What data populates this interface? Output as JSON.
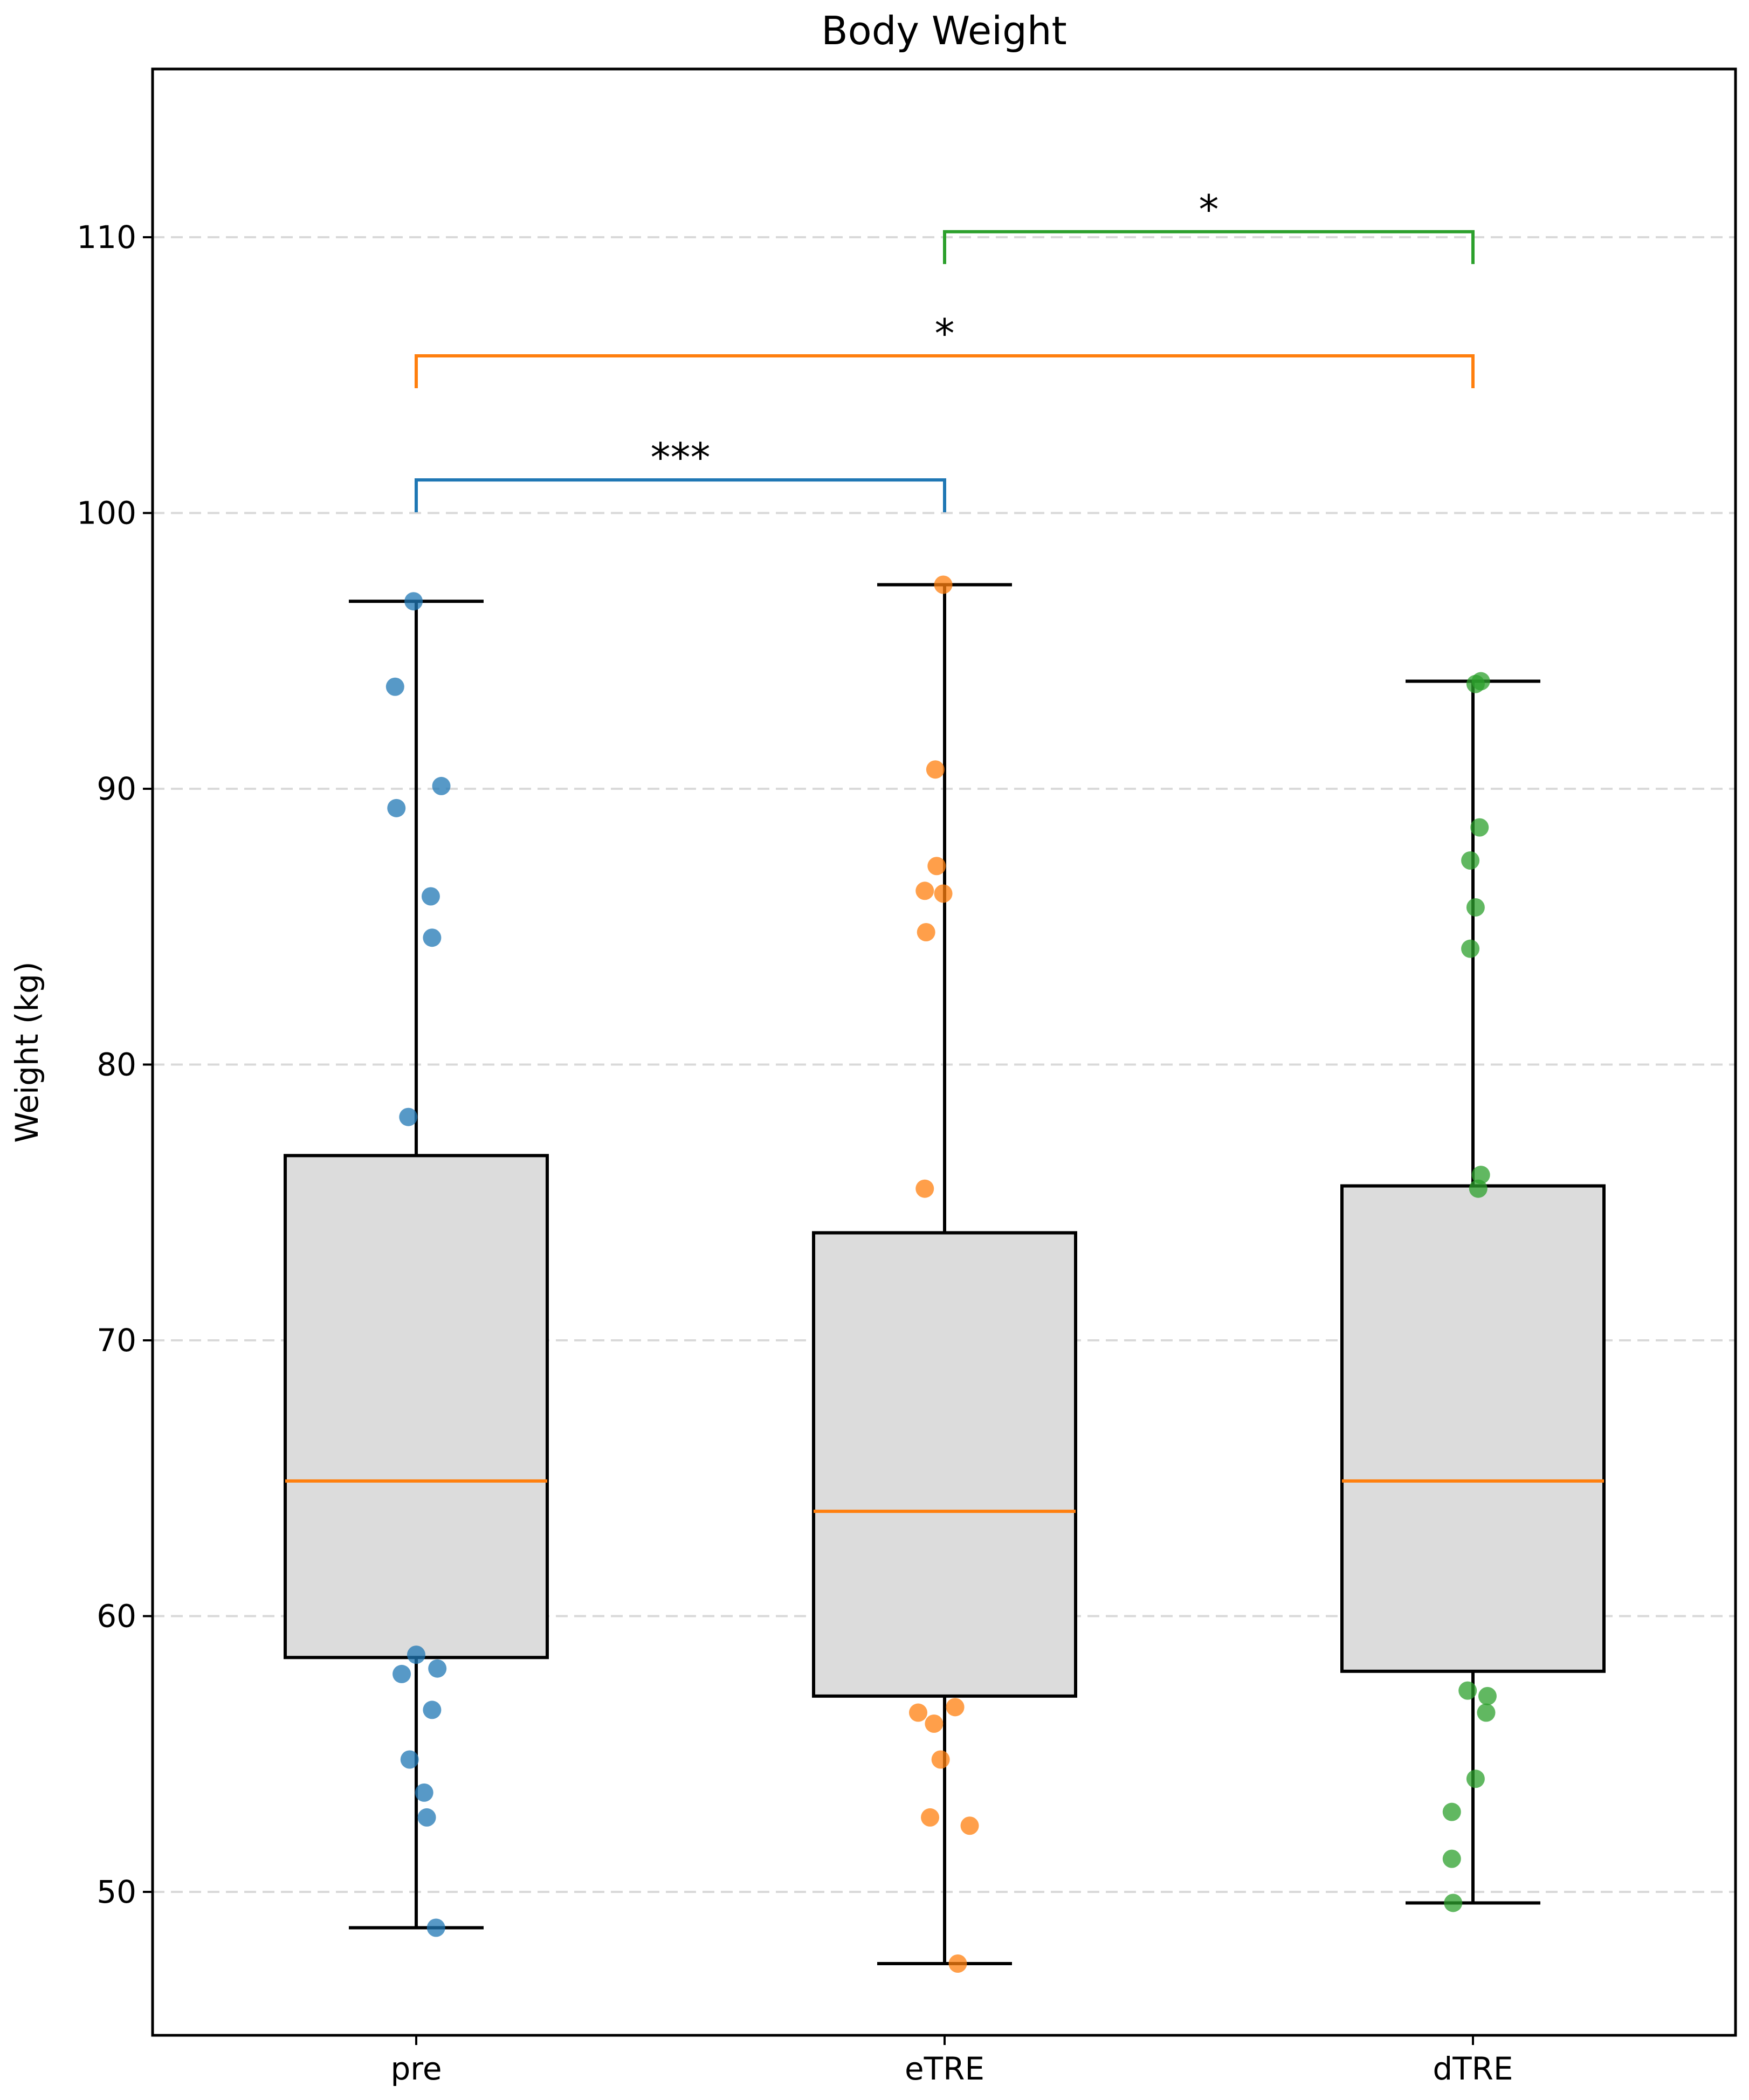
{
  "chart_data": {
    "type": "box",
    "title": "Body Weight",
    "xlabel": "",
    "ylabel": "Weight (kg)",
    "ylim": [
      44.8,
      116.1
    ],
    "yticks": [
      50,
      60,
      70,
      80,
      90,
      100,
      110
    ],
    "grid": "horizontal-dashed",
    "categories": [
      "pre",
      "eTRE",
      "dTRE"
    ],
    "series": [
      {
        "name": "pre",
        "color": "#1f77b4",
        "box": {
          "whisker_low": 48.7,
          "q1": 58.5,
          "median": 64.9,
          "q3": 76.7,
          "whisker_high": 96.8
        },
        "points": [
          96.8,
          93.7,
          90.1,
          89.3,
          86.1,
          84.6,
          78.1,
          58.6,
          58.1,
          57.9,
          56.6,
          54.8,
          53.6,
          52.7,
          48.7
        ],
        "jitter": [
          -0.02,
          -0.16,
          0.19,
          -0.15,
          0.11,
          0.12,
          -0.06,
          0.0,
          0.16,
          -0.11,
          0.12,
          -0.05,
          0.06,
          0.08,
          0.15
        ]
      },
      {
        "name": "eTRE",
        "color": "#ff7f0e",
        "box": {
          "whisker_low": 47.4,
          "q1": 57.1,
          "median": 63.8,
          "q3": 73.9,
          "whisker_high": 97.4
        },
        "points": [
          97.4,
          90.7,
          87.2,
          86.3,
          86.2,
          84.8,
          75.5,
          56.7,
          56.5,
          56.1,
          54.8,
          52.7,
          52.4,
          47.4
        ],
        "jitter": [
          -0.01,
          -0.07,
          -0.06,
          -0.15,
          -0.01,
          -0.14,
          -0.15,
          0.08,
          -0.2,
          -0.08,
          -0.03,
          -0.11,
          0.19,
          0.1
        ]
      },
      {
        "name": "dTRE",
        "color": "#2ca02c",
        "box": {
          "whisker_low": 49.6,
          "q1": 58.0,
          "median": 64.9,
          "q3": 75.6,
          "whisker_high": 93.9
        },
        "points": [
          93.9,
          93.8,
          88.6,
          87.4,
          85.7,
          84.2,
          76.0,
          75.5,
          57.3,
          57.1,
          56.5,
          54.1,
          52.9,
          51.2,
          49.6
        ],
        "jitter": [
          0.06,
          0.02,
          0.05,
          -0.02,
          0.02,
          -0.02,
          0.06,
          0.04,
          -0.04,
          0.11,
          0.1,
          0.02,
          -0.16,
          -0.16,
          -0.15
        ]
      }
    ],
    "annotations": [
      {
        "from": "pre",
        "to": "eTRE",
        "label": "***",
        "y": 101.2,
        "color": "#1f77b4"
      },
      {
        "from": "pre",
        "to": "dTRE",
        "label": "*",
        "y": 105.7,
        "color": "#ff7f0e"
      },
      {
        "from": "eTRE",
        "to": "dTRE",
        "label": "*",
        "y": 110.2,
        "color": "#2ca02c"
      }
    ],
    "box_fill": "#dcdcdc",
    "median_color": "#ff7f0e"
  }
}
